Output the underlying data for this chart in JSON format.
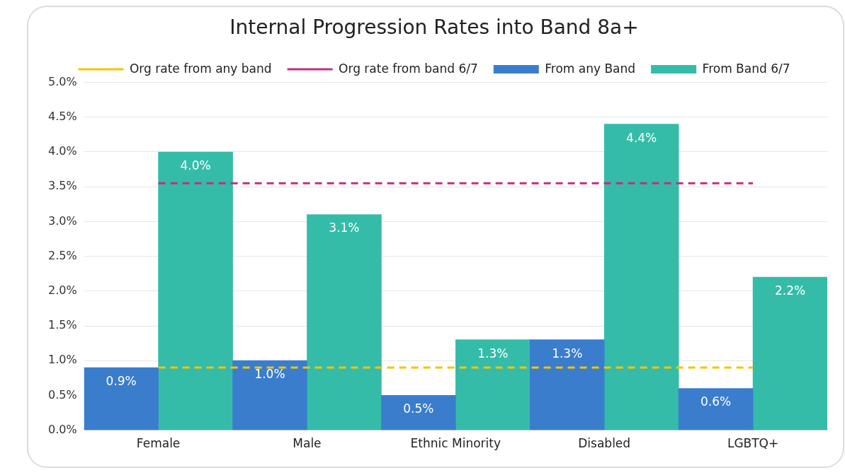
{
  "chart_data": {
    "type": "bar",
    "title": "Internal Progression Rates into Band 8a+",
    "categories": [
      "Female",
      "Male",
      "Ethnic Minority",
      "Disabled",
      "LGBTQ+"
    ],
    "series": [
      {
        "name": "From any Band",
        "color": "#3a7dcc",
        "values": [
          0.9,
          1.0,
          0.5,
          1.3,
          0.6
        ],
        "value_labels": [
          "0.9%",
          "1.0%",
          "0.5%",
          "1.3%",
          "0.6%"
        ]
      },
      {
        "name": "From Band 6/7",
        "color": "#35bca9",
        "values": [
          4.0,
          3.1,
          1.3,
          4.4,
          2.2
        ],
        "value_labels": [
          "4.0%",
          "3.1%",
          "1.3%",
          "4.4%",
          "2.2%"
        ]
      },
      {
        "name": "Org rate from any band",
        "type": "line",
        "color": "#f5c400",
        "line_style": "dashed",
        "values": [
          0.9,
          0.9,
          0.9,
          0.9,
          0.9
        ]
      },
      {
        "name": "Org rate from band 6/7",
        "type": "line",
        "color": "#c0307f",
        "line_style": "dashed",
        "values": [
          3.55,
          3.55,
          3.55,
          3.55,
          3.55
        ]
      }
    ],
    "ylim": [
      0,
      5
    ],
    "yticks": [
      {
        "value": 0,
        "label": "0.0%"
      },
      {
        "value": 0.5,
        "label": "0.5%"
      },
      {
        "value": 1,
        "label": "1.0%"
      },
      {
        "value": 1.5,
        "label": "1.5%"
      },
      {
        "value": 2,
        "label": "2.0%"
      },
      {
        "value": 2.5,
        "label": "2.5%"
      },
      {
        "value": 3,
        "label": "3.0%"
      },
      {
        "value": 3.5,
        "label": "3.5%"
      },
      {
        "value": 4,
        "label": "4.0%"
      },
      {
        "value": 4.5,
        "label": "4.5%"
      },
      {
        "value": 5,
        "label": "5.0%"
      }
    ],
    "grid": "y",
    "legend": "top",
    "marker": "none"
  }
}
